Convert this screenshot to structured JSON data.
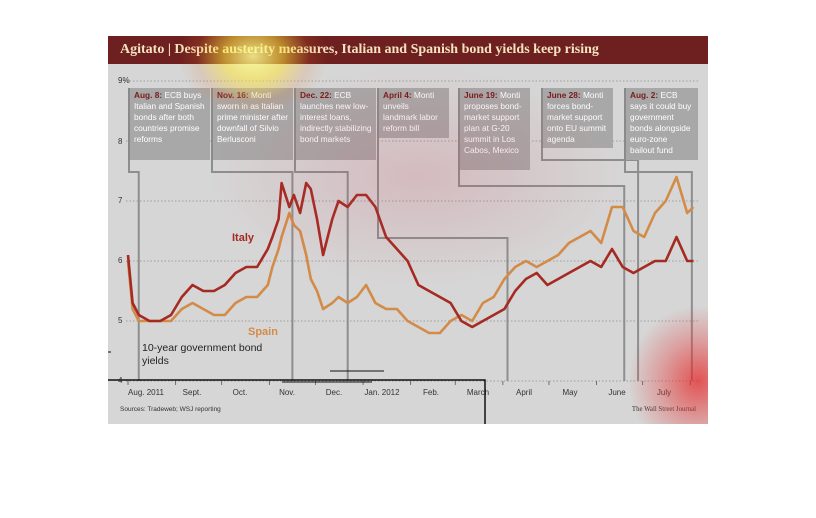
{
  "title": "Agitato | Despite austerity measures, Italian and Spanish bond yields keep rising",
  "source": "Sources: Tradeweb; WSJ reporting",
  "credit": "The Wall Street Journal",
  "ylabel": "10-year government bond yields",
  "y_ticks": [
    "9%",
    "8",
    "7",
    "6",
    "5",
    "4"
  ],
  "x_ticks": [
    "Aug. 2011",
    "Sept.",
    "Oct.",
    "Nov.",
    "Dec.",
    "Jan. 2012",
    "Feb.",
    "March",
    "April",
    "May",
    "June",
    "July"
  ],
  "events": [
    {
      "date": "Aug. 8:",
      "text": "ECB buys Italian and Spanish bonds after both countries promise reforms"
    },
    {
      "date": "Nov. 16:",
      "text": "Monti sworn in as Italian prime minister after downfall of Silvio Berlusconi"
    },
    {
      "date": "Dec. 22:",
      "text": "ECB launches new low-interest loans, indirectly stabilizing bond markets"
    },
    {
      "date": "April 4:",
      "text": "Monti unveils landmark labor reform bill"
    },
    {
      "date": "June 19:",
      "text": "Monti proposes bond-market support plan at G-20 summit in Los Cabos, Mexico"
    },
    {
      "date": "June 28:",
      "text": "Monti forces bond-market support onto EU summit agenda"
    },
    {
      "date": "Aug. 2:",
      "text": "ECB says it could buy government bonds alongside euro-zone bailout fund"
    }
  ],
  "colors": {
    "italy": "#a52a22",
    "spain": "#d38b48",
    "header": "#6e1f1f",
    "background": "#d6d6d6"
  },
  "chart_data": {
    "type": "line",
    "title": "Agitato | Despite austerity measures, Italian and Spanish bond yields keep rising",
    "ylabel": "10-year government bond yields",
    "xlabel": "",
    "ylim": [
      4,
      9
    ],
    "x_range": [
      "2011-08-01",
      "2012-08-06"
    ],
    "grid": true,
    "series": [
      {
        "name": "Italy",
        "x": [
          "2011-08-01",
          "2011-08-04",
          "2011-08-08",
          "2011-08-15",
          "2011-08-22",
          "2011-08-29",
          "2011-09-05",
          "2011-09-12",
          "2011-09-19",
          "2011-09-26",
          "2011-10-03",
          "2011-10-10",
          "2011-10-17",
          "2011-10-24",
          "2011-10-31",
          "2011-11-03",
          "2011-11-07",
          "2011-11-09",
          "2011-11-14",
          "2011-11-17",
          "2011-11-21",
          "2011-11-25",
          "2011-11-28",
          "2011-12-02",
          "2011-12-06",
          "2011-12-12",
          "2011-12-16",
          "2011-12-22",
          "2011-12-28",
          "2012-01-03",
          "2012-01-09",
          "2012-01-16",
          "2012-01-23",
          "2012-01-30",
          "2012-02-06",
          "2012-02-13",
          "2012-02-20",
          "2012-02-27",
          "2012-03-05",
          "2012-03-12",
          "2012-03-19",
          "2012-03-26",
          "2012-04-02",
          "2012-04-09",
          "2012-04-16",
          "2012-04-23",
          "2012-04-30",
          "2012-05-07",
          "2012-05-14",
          "2012-05-21",
          "2012-05-28",
          "2012-06-04",
          "2012-06-11",
          "2012-06-18",
          "2012-06-25",
          "2012-07-02",
          "2012-07-09",
          "2012-07-16",
          "2012-07-23",
          "2012-07-30",
          "2012-08-03"
        ],
        "values": [
          6.1,
          5.3,
          5.1,
          5.0,
          5.0,
          5.1,
          5.4,
          5.6,
          5.5,
          5.5,
          5.6,
          5.8,
          5.9,
          5.9,
          6.2,
          6.4,
          6.7,
          7.3,
          6.9,
          7.1,
          6.8,
          7.3,
          7.2,
          6.7,
          6.1,
          6.7,
          7.0,
          6.9,
          7.1,
          7.1,
          6.9,
          6.4,
          6.2,
          6.0,
          5.6,
          5.5,
          5.4,
          5.3,
          5.0,
          4.9,
          5.0,
          5.1,
          5.2,
          5.5,
          5.7,
          5.8,
          5.6,
          5.7,
          5.8,
          5.9,
          6.0,
          5.9,
          6.2,
          5.9,
          5.8,
          5.9,
          6.0,
          6.0,
          6.4,
          6.0,
          6.0
        ]
      },
      {
        "name": "Spain",
        "x": [
          "2011-08-01",
          "2011-08-04",
          "2011-08-08",
          "2011-08-15",
          "2011-08-22",
          "2011-08-29",
          "2011-09-05",
          "2011-09-12",
          "2011-09-19",
          "2011-09-26",
          "2011-10-03",
          "2011-10-10",
          "2011-10-17",
          "2011-10-24",
          "2011-10-31",
          "2011-11-03",
          "2011-11-07",
          "2011-11-09",
          "2011-11-14",
          "2011-11-17",
          "2011-11-21",
          "2011-11-25",
          "2011-11-28",
          "2011-12-02",
          "2011-12-06",
          "2011-12-12",
          "2011-12-16",
          "2011-12-22",
          "2011-12-28",
          "2012-01-03",
          "2012-01-09",
          "2012-01-16",
          "2012-01-23",
          "2012-01-30",
          "2012-02-06",
          "2012-02-13",
          "2012-02-20",
          "2012-02-27",
          "2012-03-05",
          "2012-03-12",
          "2012-03-19",
          "2012-03-26",
          "2012-04-02",
          "2012-04-09",
          "2012-04-16",
          "2012-04-23",
          "2012-04-30",
          "2012-05-07",
          "2012-05-14",
          "2012-05-21",
          "2012-05-28",
          "2012-06-04",
          "2012-06-11",
          "2012-06-18",
          "2012-06-25",
          "2012-07-02",
          "2012-07-09",
          "2012-07-16",
          "2012-07-23",
          "2012-07-30",
          "2012-08-03"
        ],
        "values": [
          6.0,
          5.2,
          5.0,
          5.0,
          5.0,
          5.0,
          5.2,
          5.3,
          5.2,
          5.1,
          5.1,
          5.3,
          5.4,
          5.4,
          5.6,
          5.9,
          6.2,
          6.4,
          6.8,
          6.6,
          6.5,
          6.1,
          5.7,
          5.5,
          5.2,
          5.3,
          5.4,
          5.3,
          5.4,
          5.6,
          5.3,
          5.2,
          5.2,
          5.0,
          4.9,
          4.8,
          4.8,
          5.0,
          5.1,
          5.0,
          5.3,
          5.4,
          5.7,
          5.9,
          6.0,
          5.9,
          6.0,
          6.1,
          6.3,
          6.4,
          6.5,
          6.3,
          6.9,
          6.9,
          6.5,
          6.4,
          6.8,
          7.0,
          7.4,
          6.8,
          6.9
        ]
      }
    ]
  }
}
